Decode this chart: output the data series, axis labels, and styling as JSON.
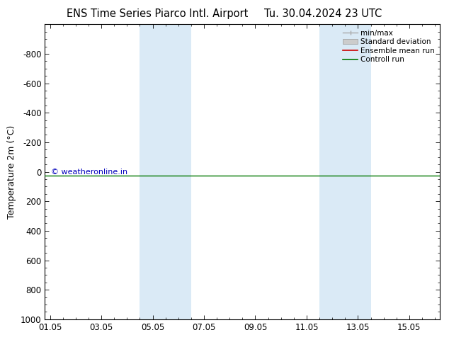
{
  "title_left": "ENS Time Series Piarco Intl. Airport",
  "title_right": "Tu. 30.04.2024 23 UTC",
  "ylabel": "Temperature 2m (°C)",
  "ylim_bottom": 1000,
  "ylim_top": -1000,
  "yticks": [
    -800,
    -600,
    -400,
    -200,
    0,
    200,
    400,
    600,
    800,
    1000
  ],
  "xtick_labels": [
    "01.05",
    "03.05",
    "05.05",
    "07.05",
    "09.05",
    "11.05",
    "13.05",
    "15.05"
  ],
  "xtick_positions": [
    0,
    2,
    4,
    6,
    8,
    10,
    12,
    14
  ],
  "xmin": -0.2,
  "xmax": 15.2,
  "blue_bands": [
    {
      "xmin": 3.5,
      "xmax": 4.5
    },
    {
      "xmin": 4.5,
      "xmax": 5.5
    },
    {
      "xmin": 10.5,
      "xmax": 11.5
    },
    {
      "xmin": 11.5,
      "xmax": 12.5
    }
  ],
  "green_line_y": 25,
  "background_color": "#ffffff",
  "band_color": "#daeaf6",
  "controll_run_color": "#007700",
  "ensemble_mean_color": "#cc0000",
  "watermark_text": "© weatheronline.in",
  "watermark_color": "#0000bb",
  "legend_items": [
    "min/max",
    "Standard deviation",
    "Ensemble mean run",
    "Controll run"
  ],
  "legend_line_color": "#aaaaaa",
  "legend_std_color": "#cccccc",
  "legend_mean_color": "#cc0000",
  "legend_ctrl_color": "#007700",
  "title_fontsize": 10.5,
  "axis_label_fontsize": 9,
  "tick_fontsize": 8.5,
  "watermark_fontsize": 8,
  "legend_fontsize": 7.5
}
